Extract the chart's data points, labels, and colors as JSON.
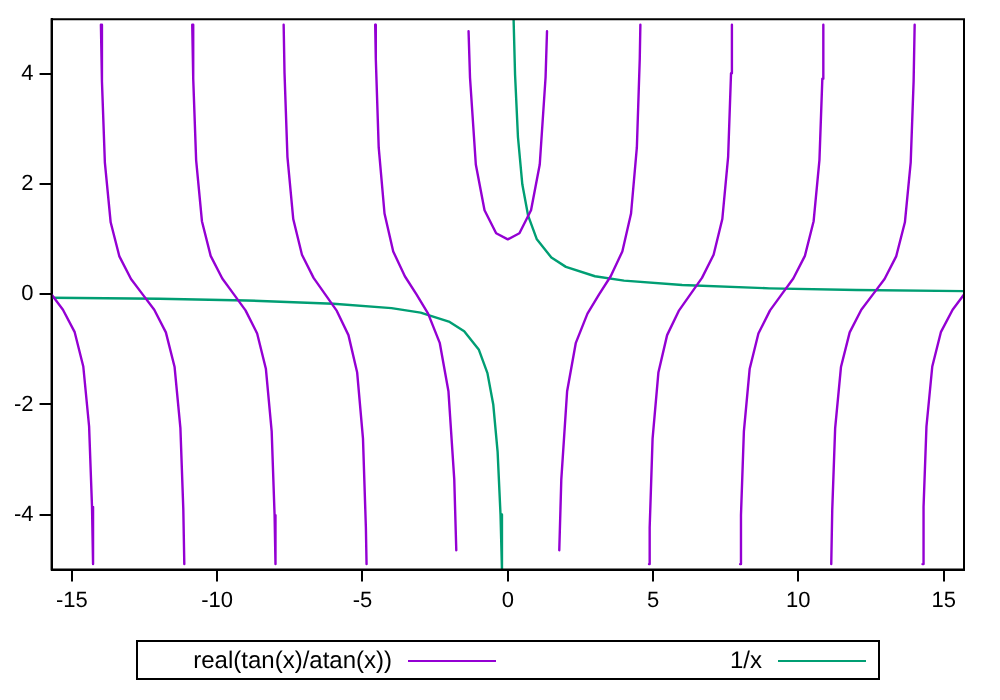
{
  "chart_data": {
    "type": "line",
    "xlim": [
      -15.7,
      15.7
    ],
    "ylim": [
      -5,
      5
    ],
    "xticks": [
      -15,
      -10,
      -5,
      0,
      5,
      10,
      15
    ],
    "yticks": [
      -4,
      -2,
      0,
      2,
      4
    ],
    "grid": false,
    "legend": "bottom",
    "marker": "none",
    "line_style": "solid",
    "series": [
      {
        "name": "real(tan(x)/atan(x))",
        "color": "#9400d3",
        "x": [
          -15.7,
          -15.308,
          -14.908,
          -14.608,
          -14.408,
          -14.308,
          -14.272,
          -14.2,
          -14.002,
          -13.966,
          -13.866,
          -13.666,
          -13.366,
          -12.966,
          -12.566,
          -12.166,
          -11.766,
          -11.466,
          -11.266,
          -11.166,
          -11.132,
          -11,
          -10.859,
          -10.825,
          -10.725,
          -10.525,
          -10.225,
          -9.825,
          -9.425,
          -9.025,
          -8.625,
          -8.325,
          -8.125,
          -8.025,
          -7.994,
          -7.9,
          -7.713,
          -7.683,
          -7.583,
          -7.383,
          -7.083,
          -6.683,
          -6.283,
          -5.883,
          -5.483,
          -5.183,
          -4.983,
          -4.883,
          -4.86,
          -4.7,
          -4.563,
          -4.542,
          -4.442,
          -4.242,
          -3.942,
          -3.542,
          -3.142,
          -2.742,
          -2.342,
          -2.042,
          -1.842,
          -1.772,
          -1.6,
          -1.35,
          -1.3,
          -1.1,
          -0.8,
          -0.4,
          0,
          0.4,
          0.8,
          1.1,
          1.3,
          1.35,
          1.6,
          1.772,
          1.842,
          2.042,
          2.342,
          2.742,
          3.142,
          3.542,
          3.942,
          4.242,
          4.442,
          4.542,
          4.563,
          4.7,
          4.86,
          4.883,
          4.983,
          5.183,
          5.483,
          5.883,
          6.283,
          6.683,
          7.083,
          7.383,
          7.583,
          7.683,
          7.713,
          7.9,
          7.994,
          8.025,
          8.125,
          8.325,
          8.625,
          9.025,
          9.425,
          9.825,
          10.225,
          10.525,
          10.725,
          10.825,
          10.859,
          11,
          11.132,
          11.166,
          11.266,
          11.466,
          11.766,
          12.166,
          12.566,
          12.966,
          13.366,
          13.666,
          13.866,
          13.966,
          14.002,
          14.2,
          14.272,
          14.308,
          14.408,
          14.608,
          14.908,
          15.308,
          15.7
        ],
        "values": [
          0,
          -0.28,
          -0.68,
          -1.31,
          -2.4,
          -3.86,
          -4.9,
          null,
          4.9,
          3.87,
          2.4,
          1.31,
          0.69,
          0.28,
          0,
          -0.28,
          -0.69,
          -1.32,
          -2.43,
          -3.91,
          -4.9,
          null,
          4.9,
          3.92,
          2.44,
          1.33,
          0.7,
          0.29,
          0,
          -0.29,
          -0.71,
          -1.35,
          -2.49,
          -4.01,
          -4.9,
          null,
          4.9,
          4.02,
          2.5,
          1.37,
          0.72,
          0.3,
          0,
          -0.3,
          -0.74,
          -1.42,
          -2.62,
          -4.24,
          -4.9,
          null,
          4.9,
          4.28,
          2.67,
          1.47,
          0.78,
          0.33,
          0,
          -0.35,
          -0.88,
          -1.76,
          -3.36,
          -4.65,
          null,
          4.78,
          3.94,
          2.36,
          1.53,
          1.11,
          1,
          1.11,
          1.53,
          2.36,
          3.94,
          4.78,
          null,
          -4.65,
          -3.36,
          -1.76,
          -0.88,
          -0.35,
          0,
          0.33,
          0.78,
          1.47,
          2.67,
          4.28,
          4.9,
          null,
          -4.9,
          -4.24,
          -2.62,
          -1.42,
          -0.74,
          -0.3,
          0,
          0.3,
          0.72,
          1.37,
          2.5,
          4.02,
          4.9,
          null,
          -4.9,
          -4.01,
          -2.49,
          -1.35,
          -0.71,
          -0.29,
          0,
          0.29,
          0.7,
          1.33,
          2.44,
          3.92,
          4.9,
          null,
          -4.9,
          -3.91,
          -2.43,
          -1.32,
          -0.69,
          -0.28,
          0,
          0.28,
          0.69,
          1.31,
          2.4,
          3.87,
          4.9,
          null,
          -4.9,
          -3.86,
          -2.4,
          -1.31,
          -0.68,
          -0.28,
          0
        ]
      },
      {
        "name": "1/x",
        "color": "#009e73",
        "x": [
          -15.7,
          -12,
          -9,
          -6,
          -4,
          -3,
          -2,
          -1.5,
          -1,
          -0.7,
          -0.5,
          -0.35,
          -0.25,
          -0.2,
          0,
          0.2,
          0.25,
          0.35,
          0.5,
          0.7,
          1,
          1.5,
          2,
          3,
          4,
          6,
          9,
          12,
          15.7
        ],
        "values": [
          -0.06,
          -0.08,
          -0.11,
          -0.17,
          -0.25,
          -0.33,
          -0.5,
          -0.67,
          -1,
          -1.43,
          -2,
          -2.86,
          -4,
          -5,
          null,
          5,
          4,
          2.86,
          2,
          1.43,
          1,
          0.67,
          0.5,
          0.33,
          0.25,
          0.17,
          0.11,
          0.08,
          0.06
        ]
      }
    ]
  }
}
